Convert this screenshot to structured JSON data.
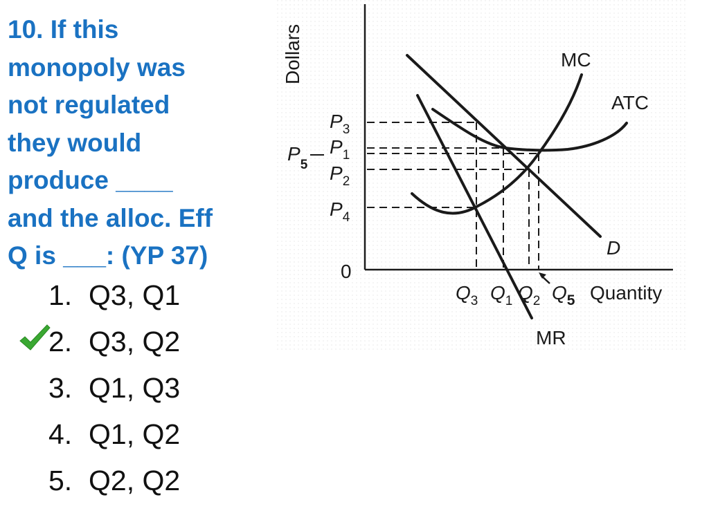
{
  "question": {
    "lines": [
      "10. If this",
      "monopoly was",
      "not regulated",
      "they would",
      "produce ____",
      "and the alloc. Eff",
      "Q is ___: (YP 37)"
    ]
  },
  "options": [
    {
      "num": "1.",
      "text": "Q3, Q1"
    },
    {
      "num": "2.",
      "text": "Q3, Q2"
    },
    {
      "num": "3.",
      "text": "Q1, Q3"
    },
    {
      "num": "4.",
      "text": "Q1, Q2"
    },
    {
      "num": "5.",
      "text": "Q2, Q2"
    }
  ],
  "correct_option": "2.",
  "colors": {
    "question": "#1a72c2",
    "check": "#3aa832",
    "curves": "#1a1a1a"
  },
  "icons": {
    "correct": "checkmark-icon"
  },
  "diagram": {
    "y_axis_label": "Dollars",
    "x_axis_label": "Quantity",
    "origin_label": "0",
    "curves": {
      "mc": "MC",
      "atc": "ATC",
      "demand": "D",
      "mr": "MR"
    },
    "price_labels": {
      "p3": {
        "base": "P",
        "sub": "3"
      },
      "p1": {
        "base": "P",
        "sub": "1"
      },
      "p5": {
        "base": "P",
        "sub": "5"
      },
      "p2": {
        "base": "P",
        "sub": "2"
      },
      "p4": {
        "base": "P",
        "sub": "4"
      }
    },
    "quantity_labels": {
      "q3": {
        "base": "Q",
        "sub": "3"
      },
      "q1": {
        "base": "Q",
        "sub": "1"
      },
      "q2": {
        "base": "Q",
        "sub": "2"
      },
      "q5": {
        "base": "Q",
        "sub": "5"
      }
    }
  }
}
